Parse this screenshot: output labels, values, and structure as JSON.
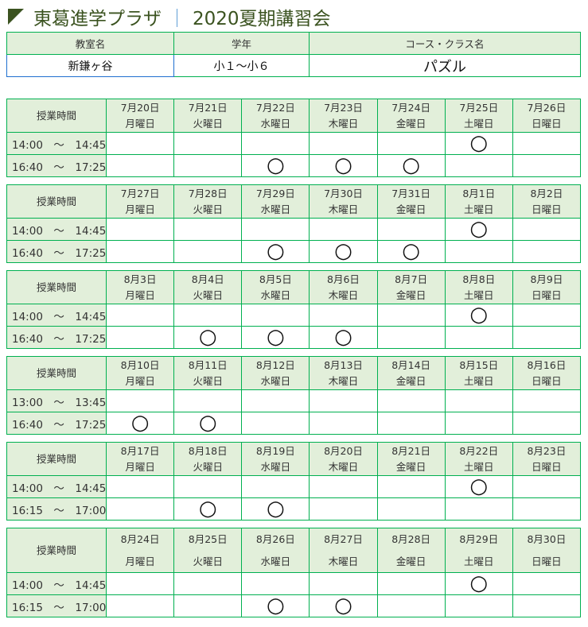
{
  "header": {
    "title": "東葛進学プラザ",
    "separator": "｜",
    "subtitle": "2020夏期講習会"
  },
  "info": {
    "headers": [
      "教室名",
      "学年",
      "コース・クラス名"
    ],
    "values": [
      "新鎌ヶ谷",
      "小１～小６",
      "パズル"
    ]
  },
  "time_header": "授業時間",
  "mark": "○",
  "weeks": [
    {
      "dates": [
        "7月20日",
        "7月21日",
        "7月22日",
        "7月23日",
        "7月24日",
        "7月25日",
        "7月26日"
      ],
      "rows": [
        {
          "time": "14:00　～　14:45",
          "marks": [
            0,
            0,
            0,
            0,
            0,
            1,
            0
          ]
        },
        {
          "time": "16:40　～　17:25",
          "marks": [
            0,
            0,
            1,
            1,
            1,
            0,
            0
          ]
        }
      ]
    },
    {
      "dates": [
        "7月27日",
        "7月28日",
        "7月29日",
        "7月30日",
        "7月31日",
        "8月1日",
        "8月2日"
      ],
      "rows": [
        {
          "time": "14:00　～　14:45",
          "marks": [
            0,
            0,
            0,
            0,
            0,
            1,
            0
          ]
        },
        {
          "time": "16:40　～　17:25",
          "marks": [
            0,
            0,
            1,
            1,
            1,
            0,
            0
          ]
        }
      ]
    },
    {
      "dates": [
        "8月3日",
        "8月4日",
        "8月5日",
        "8月6日",
        "8月7日",
        "8月8日",
        "8月9日"
      ],
      "rows": [
        {
          "time": "14:00　～　14:45",
          "marks": [
            0,
            0,
            0,
            0,
            0,
            1,
            0
          ]
        },
        {
          "time": "16:40　～　17:25",
          "marks": [
            0,
            1,
            1,
            1,
            0,
            0,
            0
          ]
        }
      ]
    },
    {
      "dates": [
        "8月10日",
        "8月11日",
        "8月12日",
        "8月13日",
        "8月14日",
        "8月15日",
        "8月16日"
      ],
      "rows": [
        {
          "time": "13:00　～　13:45",
          "marks": [
            0,
            0,
            0,
            0,
            0,
            0,
            0
          ]
        },
        {
          "time": "16:40　～　17:25",
          "marks": [
            1,
            1,
            0,
            0,
            0,
            0,
            0
          ]
        }
      ]
    },
    {
      "dates": [
        "8月17日",
        "8月18日",
        "8月19日",
        "8月20日",
        "8月21日",
        "8月22日",
        "8月23日"
      ],
      "rows": [
        {
          "time": "14:00　～　14:45",
          "marks": [
            0,
            0,
            0,
            0,
            0,
            1,
            0
          ]
        },
        {
          "time": "16:15　～　17:00",
          "marks": [
            0,
            1,
            1,
            0,
            0,
            0,
            0
          ]
        }
      ]
    },
    {
      "dates": [
        "8月24日",
        "8月25日",
        "8月26日",
        "8月27日",
        "8月28日",
        "8月29日",
        "8月30日"
      ],
      "rows": [
        {
          "time": "14:00　～　14:45",
          "marks": [
            0,
            0,
            0,
            0,
            0,
            1,
            0
          ]
        },
        {
          "time": "16:15　～　17:00",
          "marks": [
            0,
            0,
            1,
            1,
            0,
            0,
            0
          ]
        }
      ]
    }
  ],
  "weekdays": [
    "月曜日",
    "火曜日",
    "水曜日",
    "木曜日",
    "金曜日",
    "土曜日",
    "日曜日"
  ],
  "colors": {
    "border": "#00b050",
    "header_bg": "#e2efda",
    "title": "#3b5320"
  }
}
